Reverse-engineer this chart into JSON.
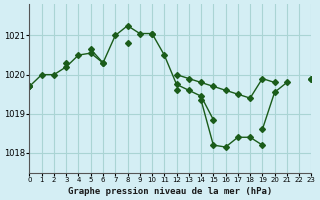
{
  "title": "Graphe pression niveau de la mer (hPa)",
  "background_color": "#d4eef4",
  "grid_color": "#aad4d4",
  "line_color": "#1a5c1a",
  "xlim": [
    0,
    23
  ],
  "ylim": [
    1017.5,
    1021.8
  ],
  "yticks": [
    1018,
    1019,
    1020,
    1021
  ],
  "xticks": [
    0,
    1,
    2,
    3,
    4,
    5,
    6,
    7,
    8,
    9,
    10,
    11,
    12,
    13,
    14,
    15,
    16,
    17,
    18,
    19,
    20,
    21,
    22,
    23
  ],
  "series": [
    {
      "x": [
        0,
        1,
        2,
        3,
        4,
        5,
        6,
        7,
        8,
        9,
        10,
        11,
        12,
        13,
        14,
        15,
        16,
        17,
        18,
        19,
        20,
        21,
        22,
        23
      ],
      "y": [
        1019.7,
        1020.0,
        1020.0,
        1020.2,
        1020.5,
        1020.55,
        1020.3,
        1021.0,
        1021.25,
        1021.05,
        1021.05,
        1020.5,
        1019.75,
        1019.6,
        1019.45,
        1018.85,
        null,
        null,
        null,
        null,
        null,
        null,
        null,
        null
      ]
    },
    {
      "x": [
        0,
        1,
        2,
        3,
        4,
        5,
        6,
        7,
        8,
        9,
        10,
        11,
        12,
        13,
        14,
        15,
        16,
        17,
        18,
        19,
        20,
        21,
        22,
        23
      ],
      "y": [
        1019.7,
        null,
        null,
        1020.3,
        null,
        1020.65,
        1020.3,
        null,
        1020.8,
        null,
        null,
        null,
        1019.6,
        null,
        1019.35,
        1018.2,
        1018.15,
        1018.4,
        1018.4,
        1018.2,
        null,
        null,
        null,
        null
      ]
    },
    {
      "x": [
        0,
        1,
        2,
        3,
        4,
        5,
        6,
        7,
        8,
        9,
        10,
        11,
        12,
        13,
        14,
        15,
        16,
        17,
        18,
        19,
        20,
        21,
        22,
        23
      ],
      "y": [
        1019.7,
        null,
        null,
        null,
        null,
        null,
        null,
        null,
        null,
        null,
        null,
        null,
        null,
        null,
        null,
        null,
        null,
        null,
        null,
        1018.6,
        1019.55,
        1019.8,
        null,
        1019.9
      ]
    },
    {
      "x": [
        0,
        1,
        2,
        3,
        4,
        5,
        6,
        7,
        8,
        9,
        10,
        11,
        12,
        13,
        14,
        15,
        16,
        17,
        18,
        19,
        20,
        21,
        22,
        23
      ],
      "y": [
        1019.7,
        null,
        null,
        null,
        null,
        null,
        null,
        null,
        null,
        null,
        1021.05,
        null,
        1020.0,
        1019.9,
        1019.8,
        1019.7,
        1019.6,
        1019.5,
        1019.4,
        1019.9,
        1019.8,
        null,
        null,
        1019.9
      ]
    }
  ]
}
